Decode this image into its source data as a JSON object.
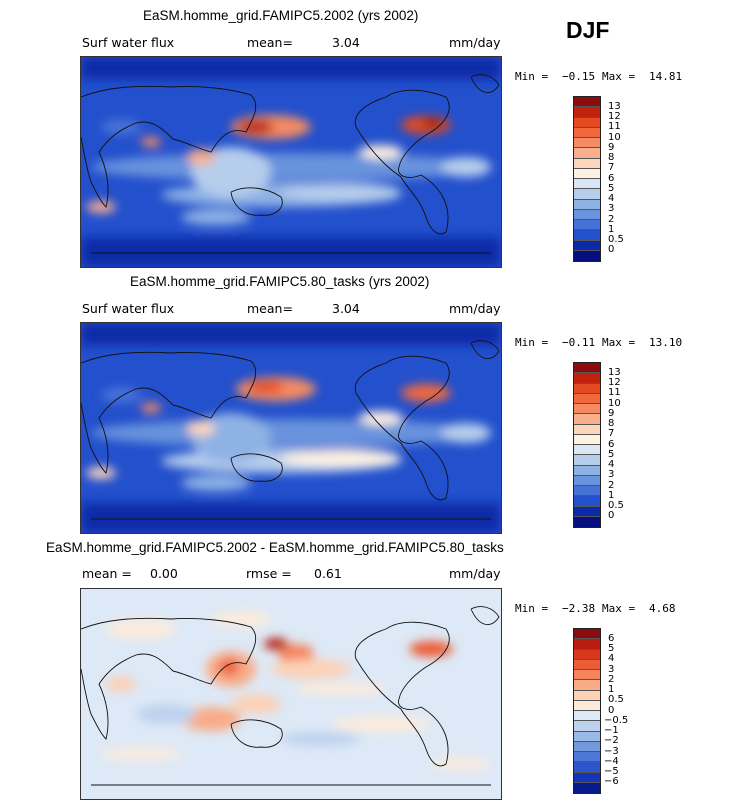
{
  "season": "DJF",
  "panels": [
    {
      "title": "EaSM.homme_grid.FAMIPC5.2002 (yrs 2002)",
      "label": "Surf water flux",
      "stat1_label": "mean=",
      "stat1_value": "3.04",
      "units": "mm/day",
      "min_label": "Min =",
      "min_value": "−0.15",
      "max_label": "Max =",
      "max_value": "14.81",
      "colorbar": {
        "ticks": [
          "13",
          "12",
          "11",
          "10",
          "9",
          "8",
          "7",
          "6",
          "5",
          "4",
          "3",
          "2",
          "1",
          "0.5",
          "0"
        ],
        "colors": [
          "#8a0c0c",
          "#c0220d",
          "#e34a1f",
          "#f0683c",
          "#f58b62",
          "#f9ae8c",
          "#fcd5bd",
          "#fdf1e2",
          "#d9e6f5",
          "#b6cdec",
          "#8fb2e5",
          "#6993dd",
          "#4672d8",
          "#2350cc",
          "#0b2aa8",
          "#050f80"
        ]
      }
    },
    {
      "title": "EaSM.homme_grid.FAMIPC5.80_tasks (yrs 2002)",
      "label": "Surf water flux",
      "stat1_label": "mean=",
      "stat1_value": "3.04",
      "units": "mm/day",
      "min_label": "Min =",
      "min_value": "−0.11",
      "max_label": "Max =",
      "max_value": "13.10",
      "colorbar": {
        "ticks": [
          "13",
          "12",
          "11",
          "10",
          "9",
          "8",
          "7",
          "6",
          "5",
          "4",
          "3",
          "2",
          "1",
          "0.5",
          "0"
        ],
        "colors": [
          "#8a0c0c",
          "#c0220d",
          "#e34a1f",
          "#f0683c",
          "#f58b62",
          "#f9ae8c",
          "#fcd5bd",
          "#fdf1e2",
          "#d9e6f5",
          "#b6cdec",
          "#8fb2e5",
          "#6993dd",
          "#4672d8",
          "#2350cc",
          "#0b2aa8",
          "#050f80"
        ]
      }
    },
    {
      "title": "EaSM.homme_grid.FAMIPC5.2002 - EaSM.homme_grid.FAMIPC5.80_tasks",
      "stat1_label": "mean =",
      "stat1_value": "0.00",
      "stat2_label": "rmse =",
      "stat2_value": "0.61",
      "units": "mm/day",
      "min_label": "Min =",
      "min_value": "−2.38",
      "max_label": "Max =",
      "max_value": "4.68",
      "colorbar": {
        "ticks": [
          "6",
          "5",
          "4",
          "3",
          "2",
          "1",
          "0.5",
          "0",
          "−0.5",
          "−1",
          "−2",
          "−3",
          "−4",
          "−5",
          "−6"
        ],
        "colors": [
          "#8a0c0c",
          "#b81e10",
          "#d9381d",
          "#ec5c35",
          "#f5845a",
          "#f9ab87",
          "#fcd1b6",
          "#fdebdc",
          "#dde9f6",
          "#bdd2ee",
          "#9ab9e6",
          "#7498dd",
          "#4f78d6",
          "#2d56cc",
          "#1436b6",
          "#061a8c"
        ]
      }
    }
  ]
}
